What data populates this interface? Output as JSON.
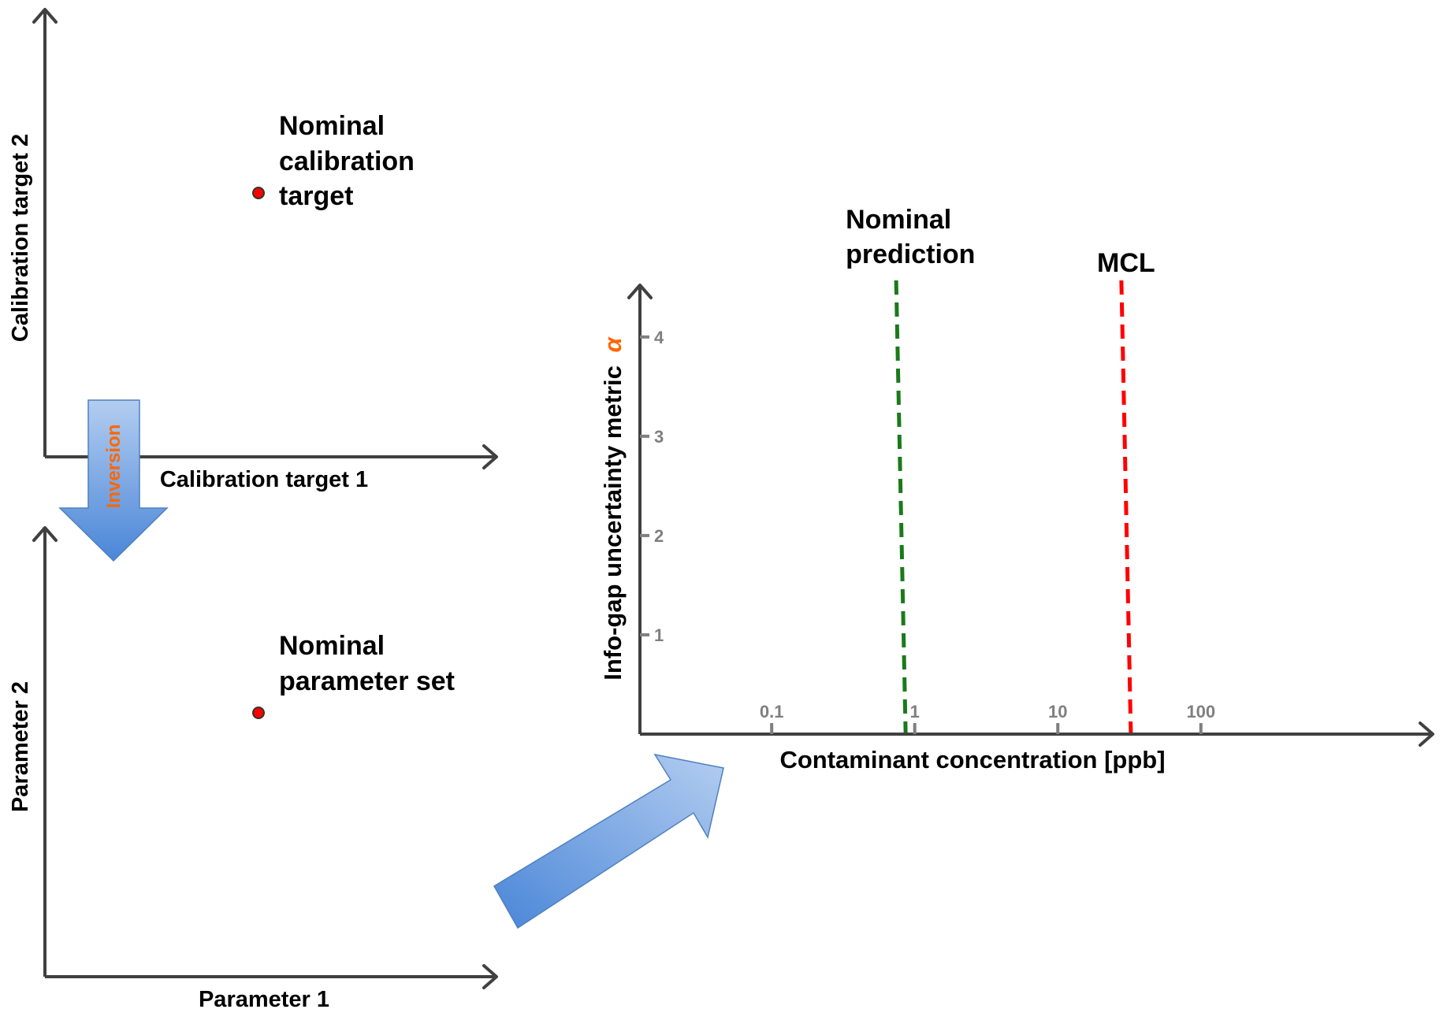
{
  "calibration_space": {
    "x_label": "Calibration target 1",
    "y_label": "Calibration target 2",
    "point_label": [
      "Nominal",
      "calibration",
      "target"
    ]
  },
  "inversion_label": "Inversion",
  "parameter_space": {
    "x_label": "Parameter 1",
    "y_label": "Parameter 2",
    "point_label": [
      "Nominal",
      "parameter set"
    ]
  },
  "chart_data": {
    "type": "line",
    "xlabel": "Contaminant concentration [ppb]",
    "ylabel": "Info-gap uncertainty metric",
    "ylabel_symbol": "α",
    "x_scale": "log",
    "x_ticks": [
      {
        "value": 0.1,
        "label": "0.1"
      },
      {
        "value": 1,
        "label": "1"
      },
      {
        "value": 10,
        "label": "10"
      },
      {
        "value": 100,
        "label": "100"
      }
    ],
    "y_ticks": [
      {
        "value": 1,
        "label": "1"
      },
      {
        "value": 2,
        "label": "2"
      },
      {
        "value": 3,
        "label": "3"
      },
      {
        "value": 4,
        "label": "4"
      }
    ],
    "xlim": [
      0.012,
      2000
    ],
    "ylim": [
      0,
      4.3
    ],
    "series": [
      {
        "name": "Nominal prediction",
        "x": 0.8,
        "style": "dashed",
        "color": "#1a7a1a"
      },
      {
        "name": "MCL",
        "x": 30,
        "style": "dashed",
        "color": "#ff0000"
      }
    ]
  },
  "colors": {
    "axis": "#404040",
    "tick": "#7f7f7f",
    "point_fill": "#ff0000",
    "inversion_text": "#ff6600",
    "alpha_symbol": "#ff6600",
    "arrow_fill_light": "#a9c6ee",
    "arrow_fill_dark": "#4a86d8"
  }
}
